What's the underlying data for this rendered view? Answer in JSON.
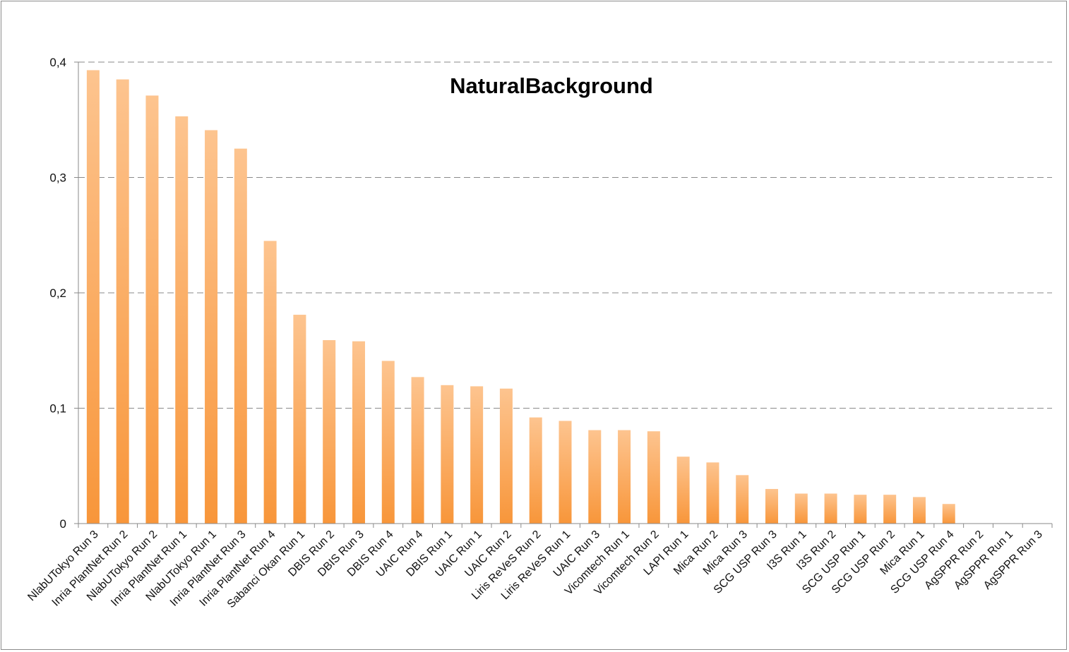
{
  "chart_data": {
    "type": "bar",
    "title": "NaturalBackground",
    "xlabel": "",
    "ylabel": "",
    "ylim": [
      0,
      0.4
    ],
    "yticks": [
      "0",
      "0,1",
      "0,2",
      "0,3",
      "0,4"
    ],
    "grid": true,
    "bar_color": "#f8963a",
    "bar_highlight": "#fdc48f",
    "categories": [
      "NlabUTokyo Run 3",
      "Inria PlantNet Run 2",
      "NlabUTokyo Run 2",
      "Inria PlantNet Run 1",
      "NlabUTokyo Run 1",
      "Inria PlantNet Run 3",
      "Inria PlantNet Run 4",
      "Sabanci Okan Run 1",
      "DBIS Run 2",
      "DBIS Run 3",
      "DBIS Run 4",
      "UAIC Run 4",
      "DBIS Run 1",
      "UAIC Run 1",
      "UAIC Run 2",
      "Liris ReVeS Run 2",
      "Liris ReVeS Run 1",
      "UAIC Run 3",
      "Vicomtech Run 1",
      "Vicomtech Run 2",
      "LAPI Run 1",
      "Mica Run 2",
      "Mica Run 3",
      "SCG USP Run 3",
      "I3S Run 1",
      "I3S Run 2",
      "SCG USP Run 1",
      "SCG USP Run 2",
      "Mica Run 1",
      "SCG USP Run 4",
      "AgSPPR Run 2",
      "AgSPPR Run 1",
      "AgSPPR Run 3"
    ],
    "values": [
      0.393,
      0.385,
      0.371,
      0.353,
      0.341,
      0.325,
      0.245,
      0.181,
      0.159,
      0.158,
      0.141,
      0.127,
      0.12,
      0.119,
      0.117,
      0.092,
      0.089,
      0.081,
      0.081,
      0.08,
      0.058,
      0.053,
      0.042,
      0.03,
      0.026,
      0.026,
      0.025,
      0.025,
      0.023,
      0.017,
      0,
      0,
      0
    ]
  }
}
